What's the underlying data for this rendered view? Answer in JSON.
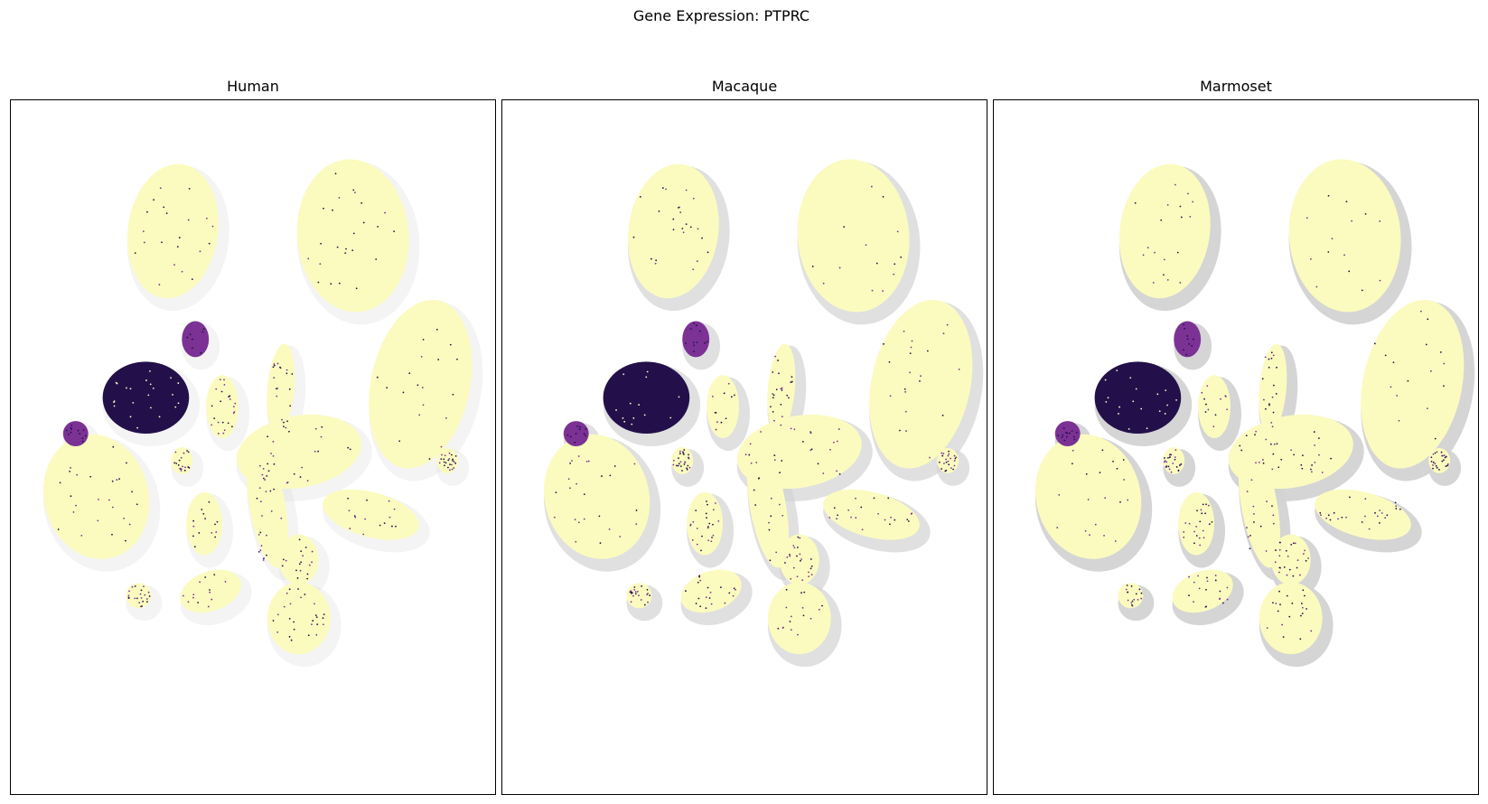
{
  "chart_data": {
    "type": "scatter",
    "title": "Gene Expression: PTPRC",
    "panels": [
      {
        "name": "Human",
        "background_alpha": 0.25
      },
      {
        "name": "Macaque",
        "background_alpha": 0.7
      },
      {
        "name": "Marmoset",
        "background_alpha": 0.95
      }
    ],
    "colors": {
      "background_cells": "#d3d3d3",
      "low_expression": "#fbfbbf",
      "mid_expression": "#7b3294",
      "high_expression": "#23104a",
      "frame": "#000000"
    },
    "colormap": "magma_r",
    "axes_visible": false,
    "grid": false,
    "legend": "none"
  }
}
